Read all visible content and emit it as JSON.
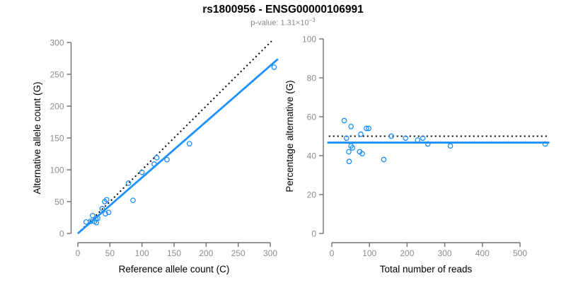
{
  "header": {
    "title": "rs1800956 - ENSG00000106991",
    "p_value_prefix": "p-value: 1.31×10",
    "p_value_exponent": "−3"
  },
  "colors": {
    "accent_blue": "#1E90FF",
    "line_black": "#000000",
    "axis_gray": "#707070",
    "tick_label_gray": "#8c8c8c",
    "subtitle_gray": "#8a8a8a",
    "axis_title_black": "#000000"
  },
  "chart_data": [
    {
      "type": "scatter",
      "name": "allele-count-scatter",
      "xlabel": "Reference allele count (C)",
      "ylabel": "Alternative allele count (G)",
      "xlim": [
        0,
        300
      ],
      "ylim": [
        0,
        300
      ],
      "xticks": [
        0,
        50,
        100,
        150,
        200,
        250,
        300
      ],
      "yticks": [
        0,
        50,
        100,
        150,
        200,
        250,
        300
      ],
      "grid": false,
      "points": [
        [
          13,
          18
        ],
        [
          20,
          19
        ],
        [
          23,
          28
        ],
        [
          26,
          19
        ],
        [
          28,
          23
        ],
        [
          29,
          17
        ],
        [
          31,
          24
        ],
        [
          38,
          39
        ],
        [
          42,
          50
        ],
        [
          43,
          31
        ],
        [
          45,
          53
        ],
        [
          48,
          33
        ],
        [
          79,
          79
        ],
        [
          86,
          52
        ],
        [
          100,
          96
        ],
        [
          119,
          109
        ],
        [
          123,
          119
        ],
        [
          139,
          116
        ],
        [
          174,
          141
        ],
        [
          306,
          261
        ]
      ],
      "lines": [
        {
          "name": "identity-line",
          "style": "dotted",
          "color": "#000000",
          "from": [
            0,
            0
          ],
          "to": [
            305,
            305
          ]
        },
        {
          "name": "fit-line",
          "style": "solid",
          "color": "#1E90FF",
          "from": [
            0,
            0
          ],
          "to": [
            312,
            274
          ]
        }
      ]
    },
    {
      "type": "scatter",
      "name": "percentage-alternative-scatter",
      "xlabel": "Total number of reads",
      "ylabel": "Percentage alternative (G)",
      "xlim": [
        0,
        500
      ],
      "ylim": [
        0,
        100
      ],
      "xticks": [
        0,
        100,
        200,
        300,
        400,
        500
      ],
      "yticks": [
        0,
        20,
        40,
        60,
        80,
        100
      ],
      "grid": false,
      "points": [
        [
          33,
          58
        ],
        [
          39,
          49
        ],
        [
          45,
          42
        ],
        [
          46,
          37
        ],
        [
          51,
          55
        ],
        [
          51,
          45
        ],
        [
          55,
          44
        ],
        [
          74,
          42
        ],
        [
          77,
          51
        ],
        [
          81,
          41
        ],
        [
          92,
          54
        ],
        [
          98,
          54
        ],
        [
          138,
          38
        ],
        [
          158,
          50
        ],
        [
          196,
          49
        ],
        [
          228,
          48
        ],
        [
          242,
          49
        ],
        [
          255,
          46
        ],
        [
          315,
          45
        ],
        [
          567,
          46
        ]
      ],
      "lines": [
        {
          "name": "fifty-percent-line",
          "style": "dotted",
          "color": "#000000",
          "from": [
            -8,
            50
          ],
          "to": [
            572,
            50
          ]
        },
        {
          "name": "mean-percentage-line",
          "style": "solid",
          "color": "#1E90FF",
          "from": [
            -12,
            46.7
          ],
          "to": [
            578,
            46.7
          ]
        }
      ]
    }
  ]
}
